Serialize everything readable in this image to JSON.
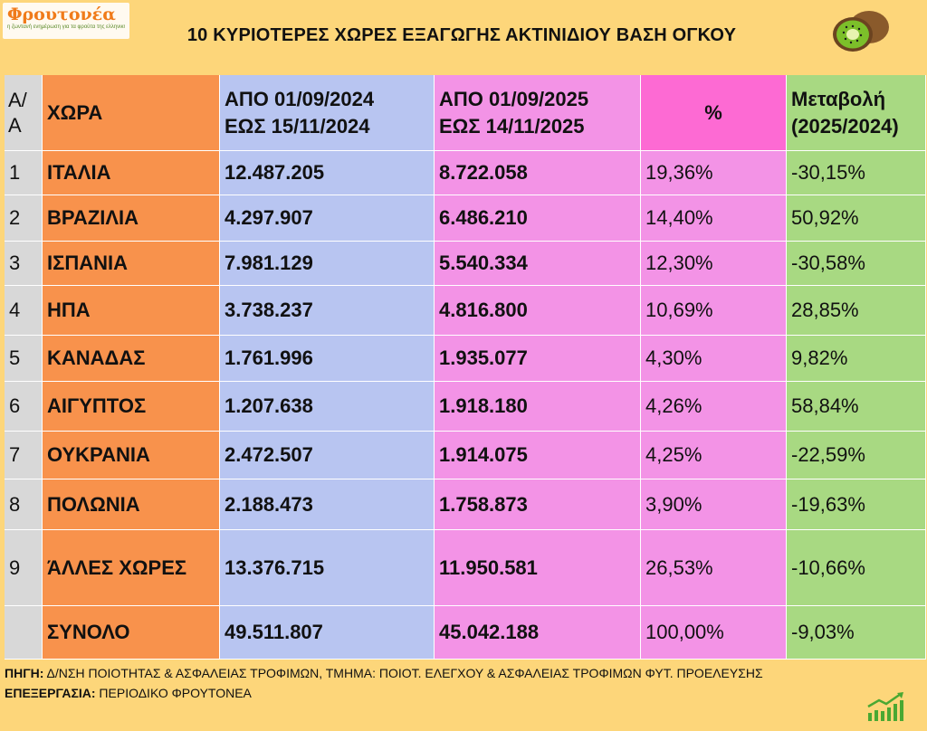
{
  "brand": {
    "name": "Φρουτονέα",
    "tagline": "η ζωντανή ενημέρωση για τα φρούτα της ελληνικής γης"
  },
  "title": "10 ΚΥΡΙΟΤΕΡΕΣ ΧΩΡΕΣ ΕΞΑΓΩΓΗΣ ΑΚΤΙΝΙΔΙΟΥ ΒΑΣΗ ΟΓΚΟΥ",
  "headers": {
    "aa_line1": "Α/",
    "aa_line2": "Α",
    "country": "ΧΩΡΑ",
    "p24_line1": "ΑΠΟ 01/09/2024",
    "p24_line2": "ΕΩΣ  15/11/2024",
    "p25_line1": "ΑΠΟ 01/09/2025",
    "p25_line2": "ΕΩΣ  14/11/2025",
    "pct": "%",
    "chg_line1": "Μεταβολή",
    "chg_line2": "(2025/2024)"
  },
  "rows": [
    {
      "aa": "1",
      "country": "ΙΤΑΛΙΑ",
      "p24": "12.487.205",
      "p25": "8.722.058",
      "pct": "19,36%",
      "chg": "-30,15%"
    },
    {
      "aa": "2",
      "country": "ΒΡΑΖΙΛΙΑ",
      "p24": "4.297.907",
      "p25": "6.486.210",
      "pct": "14,40%",
      "chg": "50,92%"
    },
    {
      "aa": "3",
      "country": "ΙΣΠΑΝΙΑ",
      "p24": "7.981.129",
      "p25": "5.540.334",
      "pct": "12,30%",
      "chg": "-30,58%"
    },
    {
      "aa": "4",
      "country": "ΗΠΑ",
      "p24": "3.738.237",
      "p25": "4.816.800",
      "pct": "10,69%",
      "chg": "28,85%"
    },
    {
      "aa": "5",
      "country": "ΚΑΝΑΔΑΣ",
      "p24": "1.761.996",
      "p25": "1.935.077",
      "pct": "4,30%",
      "chg": "9,82%"
    },
    {
      "aa": "6",
      "country": "ΑΙΓΥΠΤΟΣ",
      "p24": "1.207.638",
      "p25": "1.918.180",
      "pct": "4,26%",
      "chg": "58,84%"
    },
    {
      "aa": "7",
      "country": "ΟΥΚΡΑΝΙΑ",
      "p24": "2.472.507",
      "p25": "1.914.075",
      "pct": "4,25%",
      "chg": "-22,59%"
    },
    {
      "aa": "8",
      "country": "ΠΟΛΩΝΙΑ",
      "p24": "2.188.473",
      "p25": "1.758.873",
      "pct": "3,90%",
      "chg": "-19,63%"
    },
    {
      "aa": "9",
      "country": "ΆΛΛΕΣ ΧΩΡΕΣ",
      "p24": "13.376.715",
      "p25": "11.950.581",
      "pct": "26,53%",
      "chg": "-10,66%"
    }
  ],
  "total": {
    "aa": "",
    "country": "ΣΥΝΟΛΟ",
    "p24": "49.511.807",
    "p25": "45.042.188",
    "pct": "100,00%",
    "chg": "-9,03%"
  },
  "footer": {
    "source_label": "ΠΗΓΗ:",
    "source_text": " Δ/ΝΣΗ ΠΟΙΟΤΗΤΑΣ & ΑΣΦΑΛΕΙΑΣ ΤΡΟΦΙΜΩΝ, ΤΜΗΜΑ: ΠΟΙΟΤ. ΕΛΕΓΧΟΥ & ΑΣΦΑΛΕΙΑΣ ΤΡΟΦΙΜΩΝ ΦΥΤ. ΠΡΟΕΛΕΥΣΗΣ",
    "processing_label": "ΕΠΕΞΕΡΓΑΣΙΑ:",
    "processing_text": " ΠΕΡΙΟΔΙΚΟ ΦΡΟΥΤΟΝΕΑ"
  },
  "colors": {
    "background": "#fdd67a",
    "aa": "#d8d8d8",
    "country": "#f8924c",
    "period_2024": "#b8c5f1",
    "period_2025": "#f393e6",
    "pct_header": "#fd6ad3",
    "change": "#a8d982",
    "brand_orange": "#f07b1a",
    "icon_green": "#4aa832"
  },
  "icons": {
    "kiwi": "kiwi-fruit-icon",
    "chart": "growth-bar-chart-icon"
  }
}
